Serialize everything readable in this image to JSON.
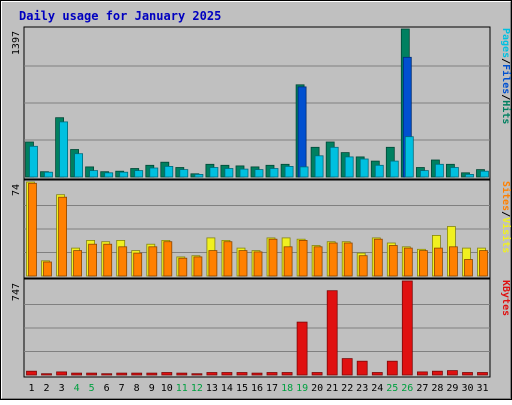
{
  "chart_data": {
    "type": "bar",
    "title": "Daily usage for January 2025",
    "categories": [
      "1",
      "2",
      "3",
      "4",
      "5",
      "6",
      "7",
      "8",
      "9",
      "10",
      "11",
      "12",
      "13",
      "14",
      "15",
      "16",
      "17",
      "18",
      "19",
      "20",
      "21",
      "22",
      "23",
      "24",
      "25",
      "26",
      "27",
      "28",
      "29",
      "30",
      "31"
    ],
    "weekend_days": [
      "4",
      "5",
      "11",
      "12",
      "18",
      "19",
      "25",
      "26"
    ],
    "panels": [
      {
        "id": "hits-files-pages",
        "max_label": "1397",
        "ylim": [
          0,
          1397
        ],
        "legend": [
          {
            "label": "Pages",
            "color": "#00c0e0"
          },
          {
            "label": "/",
            "color": "#000000"
          },
          {
            "label": "Files",
            "color": "#0050d0"
          },
          {
            "label": "/",
            "color": "#000000"
          },
          {
            "label": "Hits",
            "color": "#008060"
          }
        ],
        "series": [
          {
            "name": "Hits",
            "color": "#008060",
            "values": [
              330,
              50,
              560,
              260,
              95,
              50,
              55,
              80,
              110,
              140,
              90,
              30,
              120,
              110,
              105,
              95,
              110,
              120,
              870,
              280,
              330,
              230,
              190,
              150,
              280,
              1397,
              90,
              160,
              120,
              40,
              70
            ]
          },
          {
            "name": "Files",
            "color": "#0050d0",
            "values": [
              0,
              0,
              0,
              0,
              0,
              0,
              0,
              0,
              0,
              0,
              0,
              0,
              0,
              0,
              0,
              0,
              0,
              0,
              850,
              0,
              0,
              0,
              0,
              0,
              0,
              1130,
              0,
              0,
              0,
              0,
              0
            ]
          },
          {
            "name": "Pages",
            "color": "#00c0e0",
            "values": [
              290,
              45,
              520,
              220,
              60,
              40,
              45,
              60,
              85,
              100,
              70,
              25,
              90,
              80,
              75,
              70,
              80,
              100,
              95,
              200,
              280,
              190,
              170,
              110,
              150,
              380,
              60,
              120,
              90,
              25,
              55
            ]
          }
        ]
      },
      {
        "id": "visits-sites",
        "max_label": "74",
        "ylim": [
          0,
          74
        ],
        "legend": [
          {
            "label": "Sites",
            "color": "#ff8000"
          },
          {
            "label": "/",
            "color": "#000000"
          },
          {
            "label": "Visits",
            "color": "#f0f020"
          }
        ],
        "series": [
          {
            "name": "Visits",
            "color": "#f0f020",
            "values": [
              74,
              12,
              64,
              22,
              28,
              27,
              28,
              20,
              25,
              28,
              15,
              16,
              30,
              28,
              22,
              20,
              30,
              30,
              29,
              24,
              27,
              27,
              18,
              30,
              26,
              23,
              21,
              32,
              39,
              22,
              22
            ]
          },
          {
            "name": "Sites",
            "color": "#ff8000",
            "values": [
              73,
              11,
              62,
              20,
              25,
              25,
              23,
              18,
              23,
              27,
              14,
              15,
              20,
              27,
              20,
              19,
              29,
              23,
              28,
              23,
              26,
              26,
              16,
              29,
              24,
              22,
              20,
              22,
              23,
              13,
              20
            ]
          }
        ]
      },
      {
        "id": "kbytes",
        "max_label": "747",
        "ylim": [
          0,
          747
        ],
        "legend": [
          {
            "label": "KBytes",
            "color": "#e01010"
          }
        ],
        "series": [
          {
            "name": "KBytes",
            "color": "#e01010",
            "values": [
              30,
              10,
              25,
              15,
              15,
              10,
              15,
              15,
              15,
              20,
              15,
              10,
              20,
              20,
              20,
              15,
              20,
              20,
              420,
              20,
              670,
              130,
              110,
              20,
              110,
              747,
              25,
              30,
              35,
              20,
              20
            ]
          }
        ]
      }
    ]
  }
}
